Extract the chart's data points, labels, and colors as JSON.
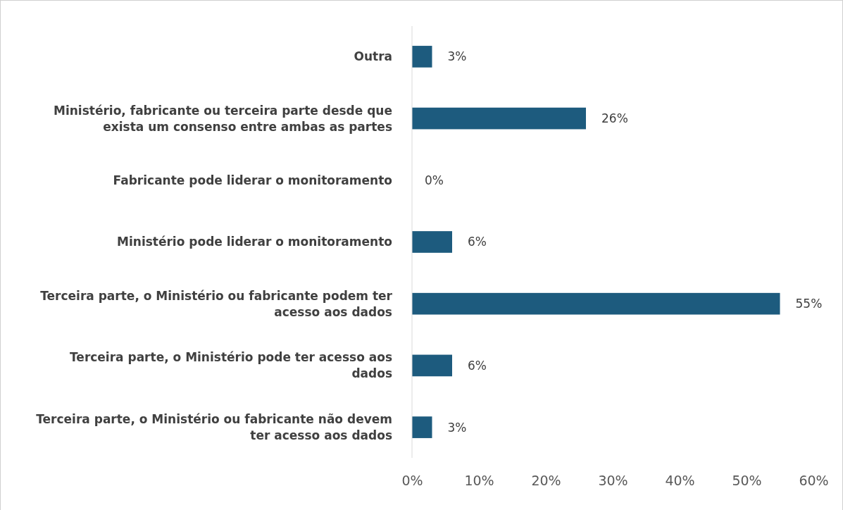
{
  "chart_data": {
    "type": "bar",
    "orientation": "horizontal",
    "categories": [
      "Outra",
      "Ministério, fabricante ou terceira parte desde que exista um consenso entre ambas as partes",
      "Fabricante pode liderar o monitoramento",
      "Ministério pode liderar o monitoramento",
      "Terceira parte, o Ministério ou fabricante podem ter acesso aos dados",
      "Terceira parte, o Ministério pode ter acesso aos dados",
      "Terceira parte, o Ministério ou fabricante não devem ter acesso aos dados"
    ],
    "values": [
      3,
      26,
      0,
      6,
      55,
      6,
      3
    ],
    "value_labels": [
      "3%",
      "26%",
      "0%",
      "6%",
      "55%",
      "6%",
      "3%"
    ],
    "color": "#1d5b7e",
    "xlim": [
      0,
      60
    ],
    "xticks": [
      {
        "value": 0,
        "label": "0%"
      },
      {
        "value": 10,
        "label": "10%"
      },
      {
        "value": 20,
        "label": "20%"
      },
      {
        "value": 30,
        "label": "30%"
      },
      {
        "value": 40,
        "label": "40%"
      },
      {
        "value": 50,
        "label": "50%"
      },
      {
        "value": 60,
        "label": "60%"
      }
    ],
    "grid": false
  }
}
